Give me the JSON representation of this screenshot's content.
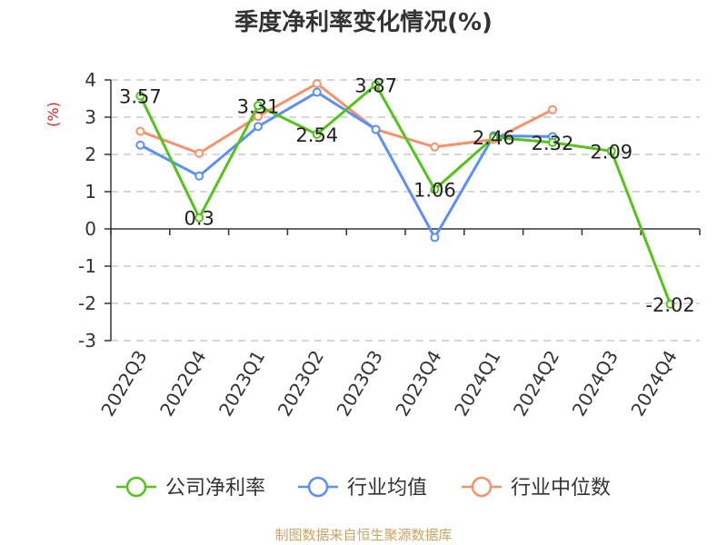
{
  "chart_data": {
    "type": "line",
    "title": "季度净利率变化情况(%)",
    "ylabel": "(%)",
    "xlabel": "",
    "categories": [
      "2022Q3",
      "2022Q4",
      "2023Q1",
      "2023Q2",
      "2023Q3",
      "2023Q4",
      "2024Q1",
      "2024Q2",
      "2024Q3",
      "2024Q4"
    ],
    "ylim": [
      -3,
      4
    ],
    "yticks": [
      "4",
      "3",
      "2",
      "1",
      "0",
      "-1",
      "-2",
      "-3"
    ],
    "grid": true,
    "legend_position": "bottom",
    "series": [
      {
        "name": "公司净利率",
        "color": "#52c41a",
        "values": [
          3.57,
          0.3,
          3.31,
          2.54,
          3.87,
          1.06,
          2.46,
          2.32,
          2.09,
          -2.02
        ],
        "labels": [
          "3.57",
          "0.3",
          "3.31",
          "2.54",
          "3.87",
          "1.06",
          "2.46",
          "2.32",
          "2.09",
          "-2.02"
        ]
      },
      {
        "name": "行业均值",
        "color": "#5b8ff9",
        "values": [
          2.25,
          1.42,
          2.75,
          3.67,
          2.67,
          -0.23,
          2.5,
          2.48,
          null,
          null
        ]
      },
      {
        "name": "行业中位数",
        "color": "#f6926b",
        "values": [
          2.62,
          2.03,
          3.02,
          3.9,
          2.67,
          2.2,
          2.4,
          3.2,
          null,
          null
        ]
      }
    ]
  },
  "source_text": "制图数据来自恒生聚源数据库"
}
